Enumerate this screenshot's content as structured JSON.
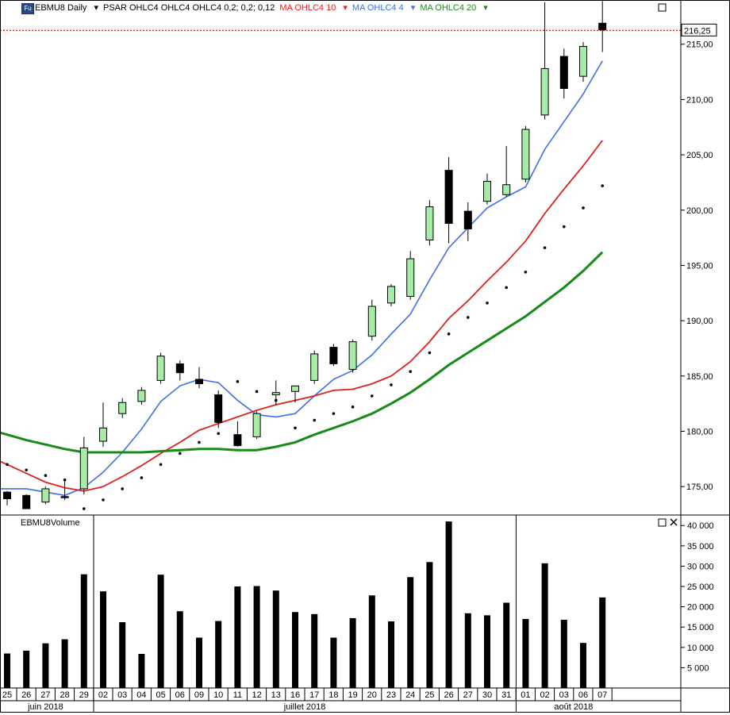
{
  "header": {
    "badge": "Fu",
    "symbol": "EBMU8 Daily",
    "psar": "PSAR OHLC4 OHLC4 OHLC4  0,2; 0,2; 0,12",
    "ma10": "MA OHLC4  10",
    "ma4": "MA OHLC4  4",
    "ma20": "MA OHLC4  20"
  },
  "colors": {
    "ma4": "#3c6fe8",
    "ma10": "#e0201c",
    "ma20": "#178a17",
    "bull": "#a6eba6",
    "bear": "#000000",
    "last_price": "#c80000"
  },
  "volume_panel": {
    "title": "EBMU8Volume"
  },
  "chart_data": [
    {
      "type": "candlestick",
      "title": "EBMU8 Daily",
      "ylim": [
        172.5,
        219
      ],
      "yticks": [
        "175,00",
        "180,00",
        "185,00",
        "190,00",
        "195,00",
        "200,00",
        "205,00",
        "210,00",
        "215,00"
      ],
      "last_price": "216,25",
      "dates": [
        "25",
        "26",
        "27",
        "28",
        "29",
        "02",
        "03",
        "04",
        "05",
        "06",
        "09",
        "10",
        "11",
        "12",
        "13",
        "16",
        "17",
        "18",
        "19",
        "20",
        "23",
        "24",
        "25",
        "26",
        "27",
        "30",
        "31",
        "01",
        "02",
        "03",
        "06",
        "07"
      ],
      "month_labels": [
        {
          "label": "juin 2018",
          "at": 2
        },
        {
          "label": "juillet 2018",
          "at": 15.5
        },
        {
          "label": "août 2018",
          "at": 29.5
        }
      ],
      "ohlc": [
        [
          174.5,
          174.6,
          173.3,
          173.9
        ],
        [
          174.2,
          174.3,
          173.0,
          173.0
        ],
        [
          173.6,
          175.0,
          173.4,
          174.8
        ],
        [
          174.1,
          175.6,
          173.8,
          174.0
        ],
        [
          174.8,
          179.5,
          174.3,
          178.5
        ],
        [
          179.1,
          182.6,
          178.6,
          180.3
        ],
        [
          181.6,
          183.0,
          181.2,
          182.6
        ],
        [
          182.7,
          184.0,
          182.4,
          183.7
        ],
        [
          184.6,
          187.1,
          184.3,
          186.8
        ],
        [
          186.1,
          186.4,
          184.6,
          185.3
        ],
        [
          184.7,
          185.8,
          183.9,
          184.3
        ],
        [
          183.3,
          183.7,
          180.3,
          180.8
        ],
        [
          179.7,
          180.9,
          178.6,
          178.7
        ],
        [
          179.5,
          181.8,
          179.3,
          181.6
        ],
        [
          183.3,
          184.6,
          182.4,
          183.5
        ],
        [
          183.6,
          184.1,
          182.6,
          184.1
        ],
        [
          184.6,
          187.3,
          184.3,
          187.0
        ],
        [
          187.6,
          187.9,
          185.9,
          186.1
        ],
        [
          185.6,
          188.3,
          185.3,
          188.1
        ],
        [
          188.6,
          191.9,
          188.2,
          191.3
        ],
        [
          191.6,
          193.3,
          191.3,
          193.1
        ],
        [
          192.2,
          196.3,
          191.9,
          195.6
        ],
        [
          197.3,
          200.9,
          196.8,
          200.3
        ],
        [
          203.6,
          204.8,
          197.0,
          198.8
        ],
        [
          199.9,
          200.7,
          197.2,
          198.3
        ],
        [
          200.8,
          203.3,
          200.5,
          202.6
        ],
        [
          201.4,
          205.8,
          201.2,
          202.3
        ],
        [
          202.8,
          207.6,
          202.5,
          207.3
        ],
        [
          208.6,
          218.8,
          208.2,
          212.8
        ],
        [
          213.9,
          214.6,
          210.1,
          211.0
        ],
        [
          212.1,
          215.2,
          211.6,
          214.8
        ],
        [
          216.9,
          218.9,
          214.3,
          216.3
        ]
      ],
      "psar": [
        177.0,
        176.5,
        176.0,
        175.6,
        173.0,
        173.8,
        174.8,
        175.8,
        177.0,
        178.0,
        179.0,
        179.8,
        184.5,
        183.6,
        182.8,
        180.3,
        181.0,
        181.6,
        182.2,
        183.2,
        184.2,
        185.4,
        187.1,
        188.8,
        190.3,
        191.6,
        193.0,
        194.4,
        196.6,
        198.5,
        200.2,
        202.2
      ],
      "series": [
        {
          "name": "MA OHLC4 4",
          "values": [
            174.8,
            174.8,
            174.5,
            174.2,
            174.9,
            176.3,
            178.1,
            180.2,
            182.7,
            184.1,
            184.7,
            184.4,
            182.8,
            181.5,
            181.3,
            181.6,
            183.2,
            184.7,
            185.5,
            186.9,
            188.8,
            190.6,
            193.7,
            196.6,
            198.4,
            200.2,
            201.2,
            202.1,
            205.5,
            208.0,
            210.5,
            213.5
          ]
        },
        {
          "name": "MA OHLC4 10",
          "values": [
            177.0,
            176.2,
            175.4,
            174.9,
            174.6,
            175.0,
            175.9,
            176.9,
            178.0,
            179.0,
            180.1,
            180.7,
            181.3,
            181.9,
            182.4,
            182.8,
            183.2,
            183.7,
            183.8,
            184.3,
            185.0,
            186.3,
            188.1,
            190.2,
            191.8,
            193.6,
            195.3,
            197.2,
            199.7,
            201.9,
            204.0,
            206.3
          ]
        },
        {
          "name": "MA OHLC4 20",
          "values": [
            179.7,
            179.2,
            178.8,
            178.4,
            178.1,
            178.1,
            178.1,
            178.1,
            178.2,
            178.3,
            178.4,
            178.4,
            178.3,
            178.3,
            178.6,
            179.0,
            179.7,
            180.3,
            180.9,
            181.6,
            182.5,
            183.5,
            184.7,
            186.0,
            187.1,
            188.2,
            189.3,
            190.4,
            191.7,
            193.0,
            194.5,
            196.2
          ]
        }
      ]
    },
    {
      "type": "bar",
      "title": "EBMU8Volume",
      "ylim": [
        0,
        42000
      ],
      "yticks": [
        "5 000",
        "10 000",
        "15 000",
        "20 000",
        "25 000",
        "30 000",
        "35 000",
        "40 000"
      ],
      "values": [
        8500,
        9200,
        11000,
        12000,
        28000,
        23800,
        16200,
        8400,
        27900,
        18900,
        12400,
        16500,
        25000,
        25100,
        24000,
        18700,
        18200,
        12400,
        17200,
        22800,
        16400,
        27300,
        31000,
        41000,
        18400,
        17900,
        21000,
        17000,
        30700,
        16800,
        11100,
        22300
      ]
    }
  ]
}
